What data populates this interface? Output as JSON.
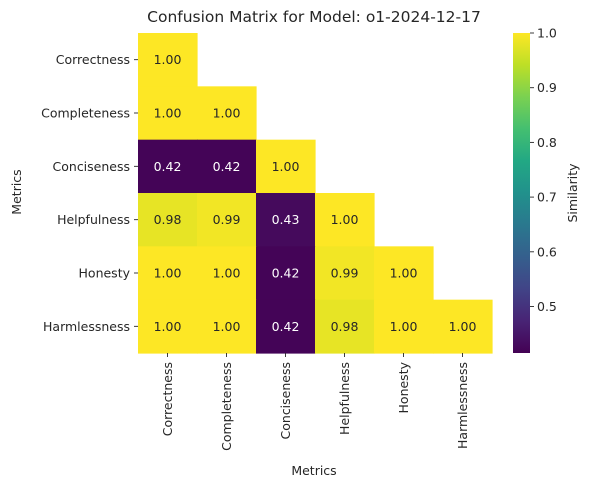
{
  "chart_data": {
    "type": "heatmap",
    "title": "Confusion Matrix for Model: o1-2024-12-17",
    "xlabel": "Metrics",
    "ylabel": "Metrics",
    "row_labels": [
      "Correctness",
      "Completeness",
      "Conciseness",
      "Helpfulness",
      "Honesty",
      "Harmlessness"
    ],
    "col_labels": [
      "Correctness",
      "Completeness",
      "Conciseness",
      "Helpfulness",
      "Honesty",
      "Harmlessness"
    ],
    "mask": "upper-triangle",
    "values": [
      [
        1.0
      ],
      [
        1.0,
        1.0
      ],
      [
        0.42,
        0.42,
        1.0
      ],
      [
        0.98,
        0.99,
        0.43,
        1.0
      ],
      [
        1.0,
        1.0,
        0.42,
        0.99,
        1.0
      ],
      [
        1.0,
        1.0,
        0.42,
        0.98,
        1.0,
        1.0
      ]
    ],
    "annotation_format": "0.00",
    "colormap": "viridis",
    "colorbar": {
      "label": "Similarity",
      "range": [
        0.415,
        1.0
      ],
      "ticks": [
        0.5,
        0.6,
        0.7,
        0.8,
        0.9,
        1.0
      ],
      "tick_labels": [
        "0.5",
        "0.6",
        "0.7",
        "0.8",
        "0.9",
        "1.0"
      ],
      "placement": "right"
    }
  }
}
